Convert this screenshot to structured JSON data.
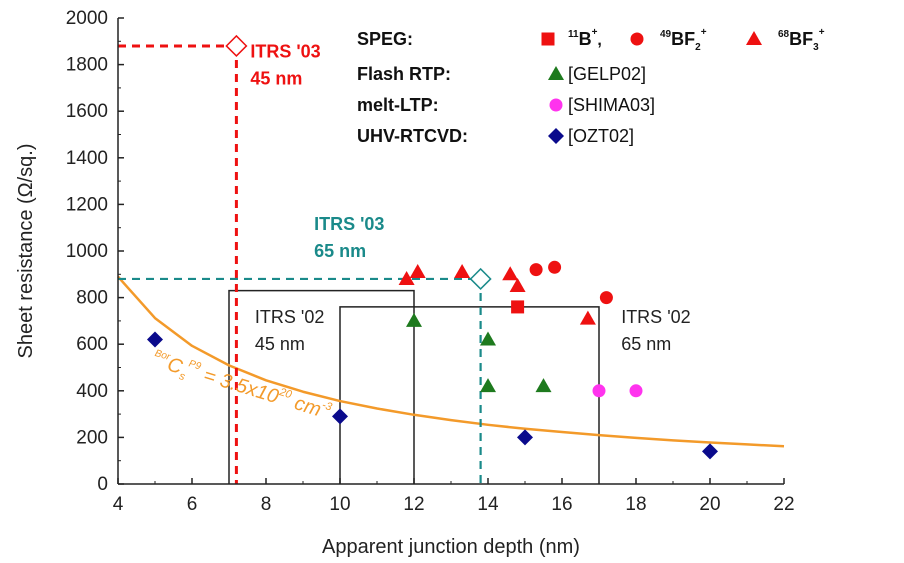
{
  "chart_data": {
    "type": "scatter",
    "xlabel": "Apparent junction depth  (nm)",
    "ylabel": "Sheet resistance  (Ω/sq.)",
    "xlim": [
      4,
      22
    ],
    "ylim": [
      0,
      2000
    ],
    "xticks": [
      "4",
      "6",
      "8",
      "10",
      "12",
      "14",
      "16",
      "18",
      "20",
      "22"
    ],
    "yticks": [
      "0",
      "200",
      "400",
      "600",
      "800",
      "1000",
      "1200",
      "1400",
      "1600",
      "1800",
      "2000"
    ],
    "grid": false,
    "legend": {
      "placement": "top-right",
      "groups": [
        {
          "label": "SPEG:",
          "ref": ""
        },
        {
          "label": "Flash RTP:",
          "ref": "[GELP02]"
        },
        {
          "label": "melt-LTP:",
          "ref": "[SHIMA03]"
        },
        {
          "label": "UHV-RTCVD:",
          "ref": "[OZT02]"
        }
      ],
      "speg_items": [
        {
          "pre": "11",
          "main": "B",
          "sup": "+",
          "post": ","
        },
        {
          "pre": "49",
          "main": "BF",
          "sub": "2",
          "sup": "+"
        },
        {
          "pre": "68",
          "main": "BF",
          "sub": "3",
          "sup": "+"
        }
      ]
    },
    "colors": {
      "red": "#ee1111",
      "green": "#1e7a1e",
      "magenta": "#ff33ee",
      "navy": "#0a0a8c",
      "teal": "#1a8a8a",
      "orange": "#f39a2a",
      "box": "#222222"
    },
    "series": [
      {
        "name": "11B+",
        "marker": "square",
        "color": "#ee1111",
        "points": [
          [
            14.8,
            760
          ]
        ]
      },
      {
        "name": "49BF2+",
        "marker": "circle",
        "color": "#ee1111",
        "points": [
          [
            15.3,
            920
          ],
          [
            15.8,
            930
          ],
          [
            17.2,
            800
          ]
        ]
      },
      {
        "name": "68BF3+",
        "marker": "triangle",
        "color": "#ee1111",
        "points": [
          [
            11.8,
            880
          ],
          [
            12.1,
            910
          ],
          [
            13.3,
            910
          ],
          [
            14.6,
            900
          ],
          [
            14.8,
            850
          ],
          [
            16.7,
            710
          ]
        ]
      },
      {
        "name": "[GELP02]",
        "marker": "triangle",
        "color": "#1e7a1e",
        "points": [
          [
            12.0,
            700
          ],
          [
            14.0,
            620
          ],
          [
            14.0,
            420
          ],
          [
            15.5,
            420
          ]
        ]
      },
      {
        "name": "[SHIMA03]",
        "marker": "circle",
        "color": "#ff33ee",
        "points": [
          [
            17.0,
            400
          ],
          [
            18.0,
            400
          ]
        ]
      },
      {
        "name": "[OZT02]",
        "marker": "diamond",
        "color": "#0a0a8c",
        "points": [
          [
            5.0,
            620
          ],
          [
            10.0,
            290
          ],
          [
            15.0,
            200
          ],
          [
            20.0,
            140
          ]
        ]
      }
    ],
    "fit_curve": {
      "color": "#f39a2a",
      "points": [
        [
          4,
          890
        ],
        [
          5,
          712
        ],
        [
          6,
          593
        ],
        [
          7,
          509
        ],
        [
          8,
          445
        ],
        [
          9,
          396
        ],
        [
          10,
          356
        ],
        [
          11,
          324
        ],
        [
          12,
          297
        ],
        [
          13,
          274
        ],
        [
          14,
          254
        ],
        [
          15,
          237
        ],
        [
          16,
          223
        ],
        [
          17,
          210
        ],
        [
          18,
          198
        ],
        [
          19,
          187
        ],
        [
          20,
          178
        ],
        [
          21,
          170
        ],
        [
          22,
          162
        ]
      ],
      "label_parts": {
        "pre": "Bor",
        "main": "C",
        "sub": "s",
        "sup_pre": "P9",
        "eq": " = 3.5x10",
        "exp": "20",
        "unit": " cm",
        "unit_exp": "-3"
      }
    },
    "itrs_targets": [
      {
        "label": "ITRS '03",
        "sub": "45 nm",
        "x": 7.2,
        "y": 1880,
        "color": "#ee1111"
      },
      {
        "label": "ITRS '03",
        "sub": "65 nm",
        "x": 13.8,
        "y": 880,
        "color": "#1a8a8a"
      }
    ],
    "itrs_windows": [
      {
        "label": "ITRS '02",
        "sub": "45 nm",
        "x0": 7,
        "x1": 12,
        "ymax": 830
      },
      {
        "label": "ITRS '02",
        "sub": "65 nm",
        "x0": 10,
        "x1": 17,
        "ymax": 760
      }
    ]
  }
}
